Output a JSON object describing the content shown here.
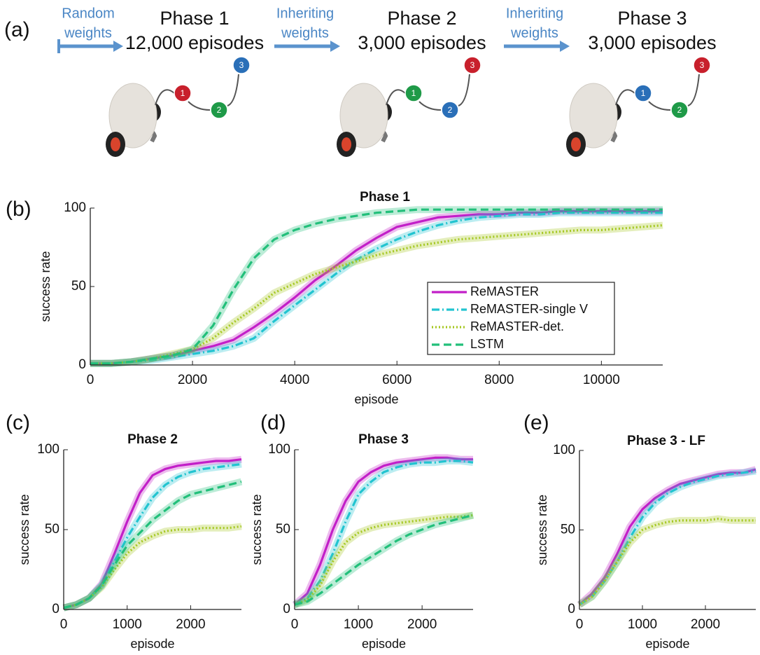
{
  "diagram": {
    "label": "(a)",
    "transitions": [
      {
        "lines": [
          "Random",
          "weights"
        ]
      },
      {
        "lines": [
          "Inheriting",
          "weights"
        ]
      },
      {
        "lines": [
          "Inheriting",
          "weights"
        ]
      }
    ],
    "phases": [
      {
        "title": "Phase 1",
        "episodes": "12,000 episodes",
        "nodes": [
          {
            "label": "1",
            "color": "#c8202c"
          },
          {
            "label": "2",
            "color": "#1f9a48"
          },
          {
            "label": "3",
            "color": "#2a6fb8"
          }
        ]
      },
      {
        "title": "Phase 2",
        "episodes": "3,000 episodes",
        "nodes": [
          {
            "label": "1",
            "color": "#1f9a48"
          },
          {
            "label": "2",
            "color": "#2a6fb8"
          },
          {
            "label": "3",
            "color": "#c8202c"
          }
        ]
      },
      {
        "title": "Phase 3",
        "episodes": "3,000 episodes",
        "nodes": [
          {
            "label": "1",
            "color": "#2a6fb8"
          },
          {
            "label": "2",
            "color": "#1f9a48"
          },
          {
            "label": "3",
            "color": "#c8202c"
          }
        ]
      }
    ]
  },
  "chart_data": [
    {
      "type": "line",
      "panel_label": "(b)",
      "title": "Phase 1",
      "xlabel": "episode",
      "ylabel": "success rate",
      "x": [
        0,
        400,
        800,
        1200,
        1600,
        2000,
        2400,
        2800,
        3200,
        3600,
        4000,
        4400,
        4800,
        5200,
        5600,
        6000,
        6400,
        6800,
        7200,
        7600,
        8000,
        8400,
        8800,
        9200,
        9600,
        10000,
        10400,
        10800,
        11200
      ],
      "xlim": [
        0,
        11200
      ],
      "xticks": [
        0,
        2000,
        4000,
        6000,
        8000,
        10000
      ],
      "ylim": [
        0,
        100
      ],
      "yticks": [
        0,
        50,
        100
      ],
      "legend": "lower right",
      "series": [
        {
          "name": "ReMASTER",
          "color": "#c21fc8",
          "style": "solid",
          "values": [
            1,
            1,
            2,
            4,
            6,
            9,
            12,
            16,
            24,
            33,
            43,
            54,
            63,
            73,
            81,
            88,
            91,
            94,
            95,
            96,
            96,
            97,
            97,
            98,
            98,
            98,
            98,
            98,
            98
          ]
        },
        {
          "name": "ReMASTER-single V",
          "color": "#22c4d0",
          "style": "dashdot",
          "values": [
            1,
            1,
            2,
            3,
            5,
            7,
            9,
            12,
            17,
            28,
            38,
            48,
            58,
            67,
            74,
            80,
            85,
            89,
            92,
            94,
            95,
            96,
            96,
            97,
            97,
            97,
            97,
            97,
            97
          ]
        },
        {
          "name": "ReMASTER-det.",
          "color": "#a6c822",
          "style": "dotted",
          "values": [
            1,
            1,
            2,
            4,
            7,
            10,
            17,
            27,
            36,
            46,
            52,
            58,
            62,
            66,
            70,
            73,
            76,
            78,
            80,
            81,
            82,
            83,
            84,
            85,
            86,
            86,
            87,
            88,
            89
          ]
        },
        {
          "name": "LSTM",
          "color": "#22bf7a",
          "style": "dashed",
          "values": [
            1,
            1,
            2,
            4,
            6,
            10,
            25,
            48,
            68,
            80,
            86,
            90,
            93,
            95,
            97,
            98,
            99,
            99,
            99,
            99,
            99,
            99,
            99,
            99,
            99,
            99,
            99,
            99,
            99
          ]
        }
      ]
    },
    {
      "type": "line",
      "panel_label": "(c)",
      "title": "Phase 2",
      "xlabel": "episode",
      "ylabel": "success rate",
      "x": [
        0,
        200,
        400,
        600,
        800,
        1000,
        1200,
        1400,
        1600,
        1800,
        2000,
        2200,
        2400,
        2600,
        2800
      ],
      "xlim": [
        0,
        2800
      ],
      "xticks": [
        0,
        1000,
        2000
      ],
      "ylim": [
        0,
        100
      ],
      "yticks": [
        0,
        50,
        100
      ],
      "series": [
        {
          "color": "#c21fc8",
          "style": "solid",
          "values": [
            1,
            3,
            7,
            16,
            35,
            55,
            73,
            84,
            88,
            90,
            91,
            92,
            93,
            93,
            94
          ]
        },
        {
          "color": "#22c4d0",
          "style": "dashdot",
          "values": [
            1,
            3,
            7,
            15,
            30,
            45,
            58,
            70,
            78,
            83,
            86,
            88,
            89,
            90,
            91
          ]
        },
        {
          "color": "#a6c822",
          "style": "dotted",
          "values": [
            1,
            3,
            7,
            14,
            25,
            35,
            42,
            46,
            49,
            50,
            50,
            51,
            51,
            51,
            52
          ]
        },
        {
          "color": "#22bf7a",
          "style": "dashed",
          "values": [
            1,
            3,
            7,
            15,
            28,
            40,
            48,
            56,
            62,
            68,
            72,
            74,
            76,
            78,
            80
          ]
        }
      ]
    },
    {
      "type": "line",
      "panel_label": "(d)",
      "title": "Phase 3",
      "xlabel": "episode",
      "ylabel": "success rate",
      "x": [
        0,
        200,
        400,
        600,
        800,
        1000,
        1200,
        1400,
        1600,
        1800,
        2000,
        2200,
        2400,
        2600,
        2800
      ],
      "xlim": [
        0,
        2800
      ],
      "xticks": [
        0,
        1000,
        2000
      ],
      "ylim": [
        0,
        100
      ],
      "yticks": [
        0,
        50,
        100
      ],
      "series": [
        {
          "color": "#c21fc8",
          "style": "solid",
          "values": [
            3,
            10,
            28,
            50,
            68,
            80,
            86,
            90,
            92,
            93,
            94,
            95,
            95,
            94,
            94
          ]
        },
        {
          "color": "#22c4d0",
          "style": "dashdot",
          "values": [
            3,
            7,
            18,
            35,
            55,
            72,
            80,
            86,
            89,
            91,
            92,
            92,
            93,
            93,
            92
          ]
        },
        {
          "color": "#a6c822",
          "style": "dotted",
          "values": [
            3,
            6,
            15,
            30,
            42,
            48,
            51,
            53,
            54,
            55,
            56,
            57,
            58,
            58,
            59
          ]
        },
        {
          "color": "#22bf7a",
          "style": "dashed",
          "values": [
            3,
            5,
            10,
            16,
            22,
            28,
            33,
            38,
            43,
            47,
            50,
            53,
            55,
            57,
            59
          ]
        }
      ]
    },
    {
      "type": "line",
      "panel_label": "(e)",
      "title": "Phase 3 - LF",
      "xlabel": "episode",
      "ylabel": "success rate",
      "x": [
        0,
        200,
        400,
        600,
        800,
        1000,
        1200,
        1400,
        1600,
        1800,
        2000,
        2200,
        2400,
        2600,
        2800
      ],
      "xlim": [
        0,
        2800
      ],
      "xticks": [
        0,
        1000,
        2000
      ],
      "ylim": [
        0,
        100
      ],
      "yticks": [
        0,
        50,
        100
      ],
      "series": [
        {
          "color": "#c21fc8",
          "style": "solid",
          "values": [
            3,
            10,
            20,
            35,
            52,
            63,
            70,
            75,
            79,
            81,
            83,
            85,
            86,
            86,
            88
          ]
        },
        {
          "color": "#22c4d0",
          "style": "dashdot",
          "values": [
            3,
            8,
            18,
            30,
            45,
            58,
            67,
            73,
            77,
            80,
            82,
            84,
            85,
            86,
            87
          ]
        },
        {
          "color": "#a6c822",
          "style": "dotted",
          "values": [
            3,
            8,
            18,
            30,
            42,
            50,
            53,
            55,
            56,
            56,
            56,
            57,
            56,
            56,
            56
          ]
        }
      ]
    }
  ]
}
